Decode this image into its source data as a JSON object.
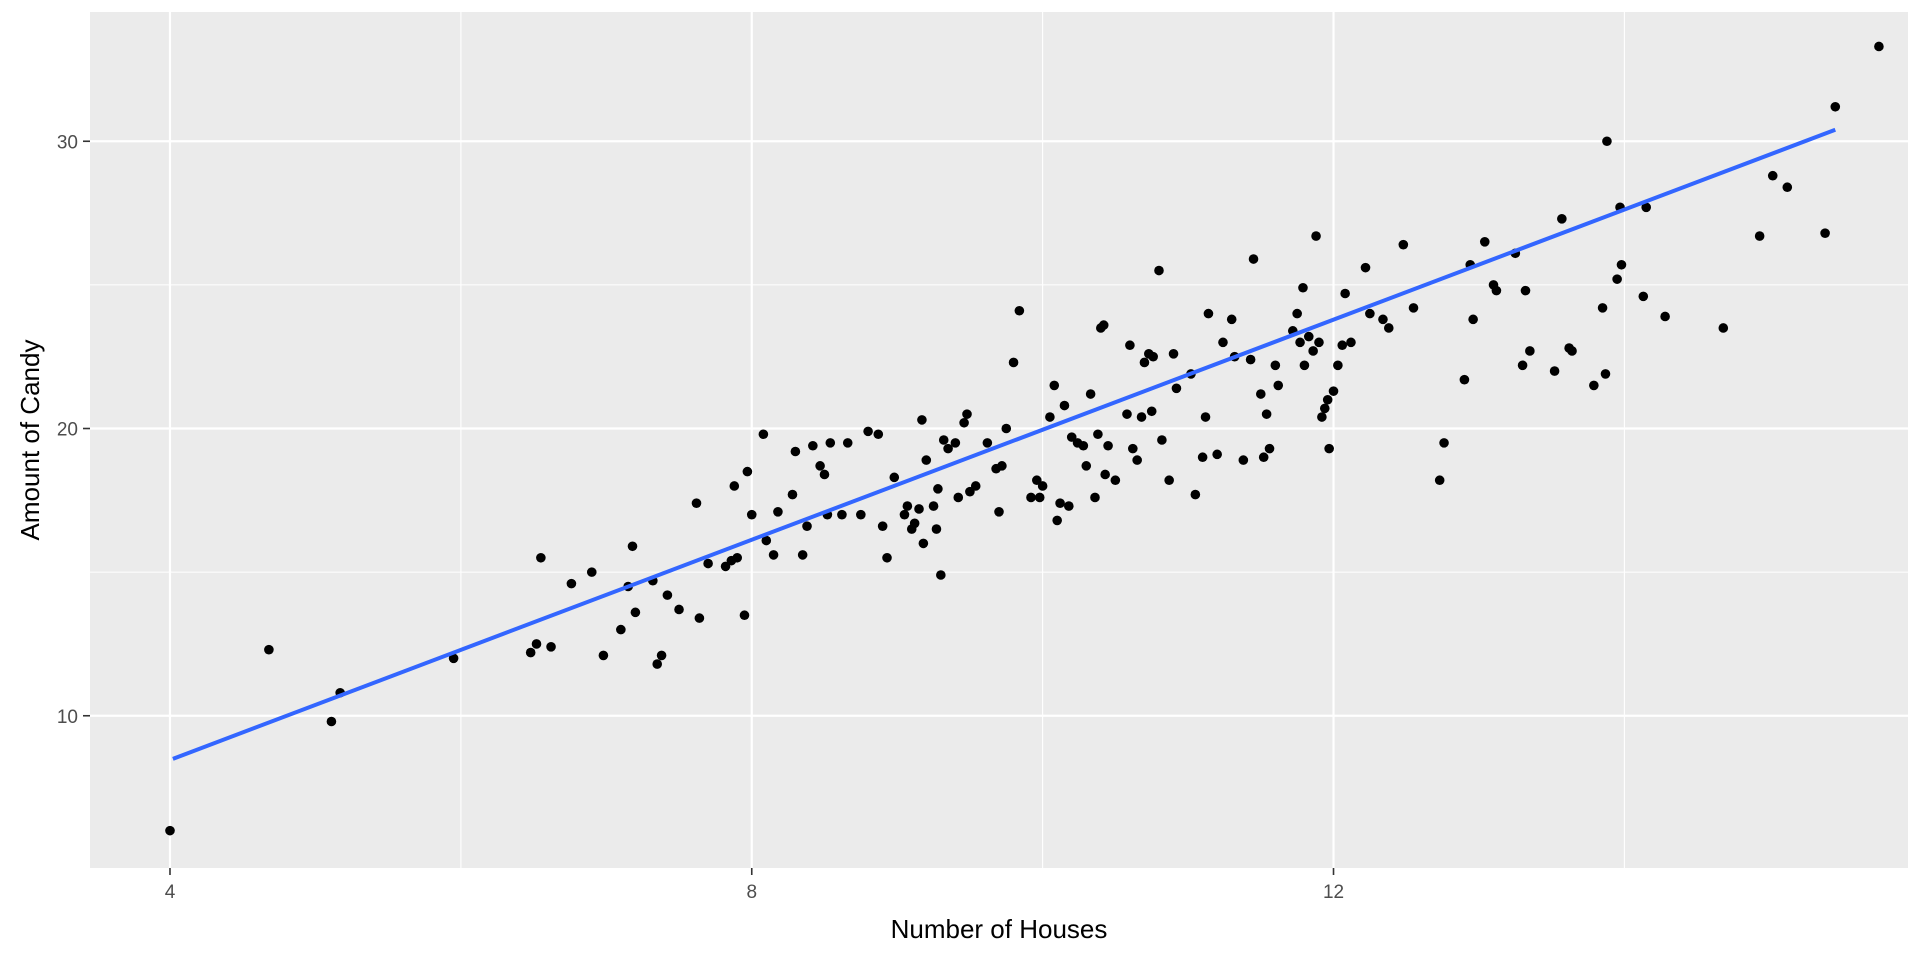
{
  "chart_data": {
    "type": "scatter",
    "title": "",
    "xlabel": "Number of Houses",
    "ylabel": "Amount of Candy",
    "xlim": [
      3.45,
      15.95
    ],
    "ylim": [
      4.7,
      34.5
    ],
    "x_ticks": [
      4,
      8,
      12
    ],
    "x_minor_ticks": [
      6,
      10,
      14
    ],
    "y_ticks": [
      10,
      20,
      30
    ],
    "y_minor_ticks": [
      15,
      25
    ],
    "x_tick_labels": [
      "4",
      "8",
      "12"
    ],
    "y_tick_labels": [
      "10",
      "20",
      "30"
    ],
    "grid": true,
    "legend": "none",
    "colors": {
      "panel_background": "#ebebeb",
      "grid_major": "#ffffff",
      "points": "#000000",
      "fit_line": "#3366ff"
    },
    "fit_line": {
      "type": "linear",
      "x": [
        4.02,
        15.45
      ],
      "y": [
        8.5,
        30.4
      ]
    },
    "series": [
      {
        "type": "scatter",
        "points": [
          [
            4.0,
            6.0
          ],
          [
            4.68,
            12.3
          ],
          [
            5.11,
            9.8
          ],
          [
            5.17,
            10.8
          ],
          [
            5.95,
            12.0
          ],
          [
            6.48,
            12.2
          ],
          [
            6.52,
            12.5
          ],
          [
            6.55,
            15.5
          ],
          [
            6.62,
            12.4
          ],
          [
            6.76,
            14.6
          ],
          [
            6.9,
            15.0
          ],
          [
            6.98,
            12.1
          ],
          [
            7.1,
            13.0
          ],
          [
            7.15,
            14.5
          ],
          [
            7.18,
            15.9
          ],
          [
            7.2,
            13.6
          ],
          [
            7.32,
            14.7
          ],
          [
            7.35,
            11.8
          ],
          [
            7.38,
            12.1
          ],
          [
            7.42,
            14.2
          ],
          [
            7.5,
            13.7
          ],
          [
            7.62,
            17.4
          ],
          [
            7.64,
            13.4
          ],
          [
            7.7,
            15.3
          ],
          [
            7.82,
            15.2
          ],
          [
            7.86,
            15.4
          ],
          [
            7.9,
            15.5
          ],
          [
            7.88,
            18.0
          ],
          [
            7.95,
            13.5
          ],
          [
            7.97,
            18.5
          ],
          [
            8.0,
            17.0
          ],
          [
            8.08,
            19.8
          ],
          [
            8.1,
            16.1
          ],
          [
            8.15,
            15.6
          ],
          [
            8.18,
            17.1
          ],
          [
            8.28,
            17.7
          ],
          [
            8.3,
            19.2
          ],
          [
            8.35,
            15.6
          ],
          [
            8.38,
            16.6
          ],
          [
            8.42,
            19.4
          ],
          [
            8.47,
            18.7
          ],
          [
            8.5,
            18.4
          ],
          [
            8.52,
            17.0
          ],
          [
            8.54,
            19.5
          ],
          [
            8.62,
            17.0
          ],
          [
            8.66,
            19.5
          ],
          [
            8.75,
            17.0
          ],
          [
            8.8,
            19.9
          ],
          [
            8.87,
            19.8
          ],
          [
            8.9,
            16.6
          ],
          [
            8.93,
            15.5
          ],
          [
            8.98,
            18.3
          ],
          [
            9.05,
            17.0
          ],
          [
            9.07,
            17.3
          ],
          [
            9.1,
            16.5
          ],
          [
            9.12,
            16.7
          ],
          [
            9.15,
            17.2
          ],
          [
            9.17,
            20.3
          ],
          [
            9.18,
            16.0
          ],
          [
            9.2,
            18.9
          ],
          [
            9.25,
            17.3
          ],
          [
            9.27,
            16.5
          ],
          [
            9.28,
            17.9
          ],
          [
            9.3,
            14.9
          ],
          [
            9.32,
            19.6
          ],
          [
            9.35,
            19.3
          ],
          [
            9.4,
            19.5
          ],
          [
            9.42,
            17.6
          ],
          [
            9.46,
            20.2
          ],
          [
            9.48,
            20.5
          ],
          [
            9.5,
            17.8
          ],
          [
            9.54,
            18.0
          ],
          [
            9.62,
            19.5
          ],
          [
            9.68,
            18.6
          ],
          [
            9.7,
            17.1
          ],
          [
            9.72,
            18.7
          ],
          [
            9.75,
            20.0
          ],
          [
            9.8,
            22.3
          ],
          [
            9.84,
            24.1
          ],
          [
            9.92,
            17.6
          ],
          [
            9.96,
            18.2
          ],
          [
            9.98,
            17.6
          ],
          [
            10.0,
            18.0
          ],
          [
            10.05,
            20.4
          ],
          [
            10.08,
            21.5
          ],
          [
            10.1,
            16.8
          ],
          [
            10.12,
            17.4
          ],
          [
            10.15,
            20.8
          ],
          [
            10.18,
            17.3
          ],
          [
            10.2,
            19.7
          ],
          [
            10.24,
            19.5
          ],
          [
            10.28,
            19.4
          ],
          [
            10.3,
            18.7
          ],
          [
            10.33,
            21.2
          ],
          [
            10.36,
            17.6
          ],
          [
            10.38,
            19.8
          ],
          [
            10.4,
            23.5
          ],
          [
            10.42,
            23.6
          ],
          [
            10.43,
            18.4
          ],
          [
            10.45,
            19.4
          ],
          [
            10.5,
            18.2
          ],
          [
            10.58,
            20.5
          ],
          [
            10.6,
            22.9
          ],
          [
            10.62,
            19.3
          ],
          [
            10.65,
            18.9
          ],
          [
            10.68,
            20.4
          ],
          [
            10.7,
            22.3
          ],
          [
            10.73,
            22.6
          ],
          [
            10.75,
            20.6
          ],
          [
            10.76,
            22.5
          ],
          [
            10.8,
            25.5
          ],
          [
            10.82,
            19.6
          ],
          [
            10.87,
            18.2
          ],
          [
            10.9,
            22.6
          ],
          [
            10.92,
            21.4
          ],
          [
            11.02,
            21.9
          ],
          [
            11.05,
            17.7
          ],
          [
            11.1,
            19.0
          ],
          [
            11.12,
            20.4
          ],
          [
            11.14,
            24.0
          ],
          [
            11.2,
            19.1
          ],
          [
            11.24,
            23.0
          ],
          [
            11.3,
            23.8
          ],
          [
            11.32,
            22.5
          ],
          [
            11.38,
            18.9
          ],
          [
            11.43,
            22.4
          ],
          [
            11.45,
            25.9
          ],
          [
            11.5,
            21.2
          ],
          [
            11.52,
            19.0
          ],
          [
            11.54,
            20.5
          ],
          [
            11.56,
            19.3
          ],
          [
            11.6,
            22.2
          ],
          [
            11.62,
            21.5
          ],
          [
            11.72,
            23.4
          ],
          [
            11.75,
            24.0
          ],
          [
            11.77,
            23.0
          ],
          [
            11.79,
            24.9
          ],
          [
            11.8,
            22.2
          ],
          [
            11.83,
            23.2
          ],
          [
            11.86,
            22.7
          ],
          [
            11.88,
            26.7
          ],
          [
            11.9,
            23.0
          ],
          [
            11.92,
            20.4
          ],
          [
            11.94,
            20.7
          ],
          [
            11.96,
            21.0
          ],
          [
            11.97,
            19.3
          ],
          [
            12.0,
            21.3
          ],
          [
            12.03,
            22.2
          ],
          [
            12.06,
            22.9
          ],
          [
            12.08,
            24.7
          ],
          [
            12.12,
            23.0
          ],
          [
            12.22,
            25.6
          ],
          [
            12.25,
            24.0
          ],
          [
            12.34,
            23.8
          ],
          [
            12.38,
            23.5
          ],
          [
            12.48,
            26.4
          ],
          [
            12.55,
            24.2
          ],
          [
            12.73,
            18.2
          ],
          [
            12.76,
            19.5
          ],
          [
            12.9,
            21.7
          ],
          [
            12.94,
            25.7
          ],
          [
            12.96,
            23.8
          ],
          [
            13.04,
            26.5
          ],
          [
            13.1,
            25.0
          ],
          [
            13.12,
            24.8
          ],
          [
            13.25,
            26.1
          ],
          [
            13.32,
            24.8
          ],
          [
            13.3,
            22.2
          ],
          [
            13.35,
            22.7
          ],
          [
            13.52,
            22.0
          ],
          [
            13.57,
            27.3
          ],
          [
            13.62,
            22.8
          ],
          [
            13.64,
            22.7
          ],
          [
            13.79,
            21.5
          ],
          [
            13.85,
            24.2
          ],
          [
            13.87,
            21.9
          ],
          [
            13.88,
            30.0
          ],
          [
            13.95,
            25.2
          ],
          [
            13.97,
            27.7
          ],
          [
            13.98,
            25.7
          ],
          [
            14.13,
            24.6
          ],
          [
            14.15,
            27.7
          ],
          [
            14.28,
            23.9
          ],
          [
            14.68,
            23.5
          ],
          [
            14.93,
            26.7
          ],
          [
            15.02,
            28.8
          ],
          [
            15.12,
            28.4
          ],
          [
            15.38,
            26.8
          ],
          [
            15.75,
            33.3
          ],
          [
            15.45,
            31.2
          ]
        ]
      }
    ]
  }
}
